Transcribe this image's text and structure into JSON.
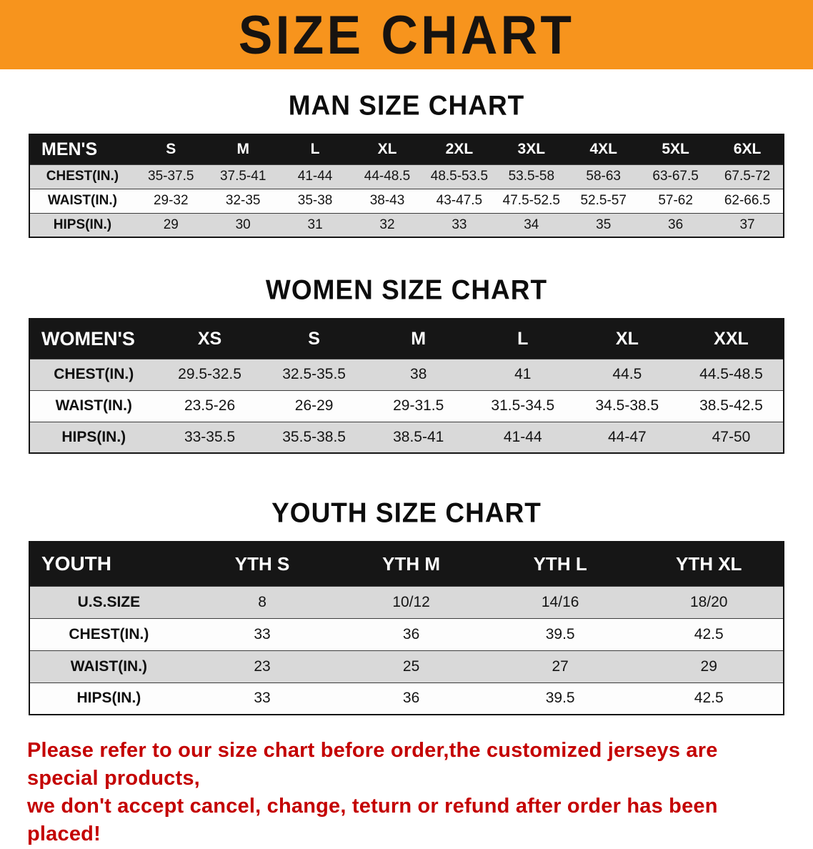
{
  "banner": {
    "title": "SIZE CHART",
    "bg_color": "#f7941d",
    "text_color": "#171310"
  },
  "sections": [
    {
      "heading": "MAN SIZE CHART",
      "table": {
        "header": [
          "MEN'S",
          "S",
          "M",
          "L",
          "XL",
          "2XL",
          "3XL",
          "4XL",
          "5XL",
          "6XL"
        ],
        "rows": [
          {
            "label": "CHEST(IN.)",
            "values": [
              "35-37.5",
              "37.5-41",
              "41-44",
              "44-48.5",
              "48.5-53.5",
              "53.5-58",
              "58-63",
              "63-67.5",
              "67.5-72"
            ]
          },
          {
            "label": "WAIST(IN.)",
            "values": [
              "29-32",
              "32-35",
              "35-38",
              "38-43",
              "43-47.5",
              "47.5-52.5",
              "52.5-57",
              "57-62",
              "62-66.5"
            ]
          },
          {
            "label": "HIPS(IN.)",
            "values": [
              "29",
              "30",
              "31",
              "32",
              "33",
              "34",
              "35",
              "36",
              "37"
            ]
          }
        ]
      }
    },
    {
      "heading": "WOMEN SIZE CHART",
      "table": {
        "header": [
          "WOMEN'S",
          "XS",
          "S",
          "M",
          "L",
          "XL",
          "XXL"
        ],
        "rows": [
          {
            "label": "CHEST(IN.)",
            "values": [
              "29.5-32.5",
              "32.5-35.5",
              "38",
              "41",
              "44.5",
              "44.5-48.5"
            ]
          },
          {
            "label": "WAIST(IN.)",
            "values": [
              "23.5-26",
              "26-29",
              "29-31.5",
              "31.5-34.5",
              "34.5-38.5",
              "38.5-42.5"
            ]
          },
          {
            "label": "HIPS(IN.)",
            "values": [
              "33-35.5",
              "35.5-38.5",
              "38.5-41",
              "41-44",
              "44-47",
              "47-50"
            ]
          }
        ]
      }
    },
    {
      "heading": "YOUTH SIZE CHART",
      "table": {
        "header": [
          "YOUTH",
          "YTH S",
          "YTH M",
          "YTH L",
          "YTH XL"
        ],
        "rows": [
          {
            "label": "U.S.SIZE",
            "values": [
              "8",
              "10/12",
              "14/16",
              "18/20"
            ]
          },
          {
            "label": "CHEST(IN.)",
            "values": [
              "33",
              "36",
              "39.5",
              "42.5"
            ]
          },
          {
            "label": "WAIST(IN.)",
            "values": [
              "23",
              "25",
              "27",
              "29"
            ]
          },
          {
            "label": "HIPS(IN.)",
            "values": [
              "33",
              "36",
              "39.5",
              "42.5"
            ]
          }
        ]
      }
    }
  ],
  "disclaimer": {
    "line1": "Please refer to our size chart before order,the customized jerseys are special products,",
    "line2": "we don't accept cancel, change, teturn or refund after order has been placed!",
    "color": "#c40000"
  }
}
